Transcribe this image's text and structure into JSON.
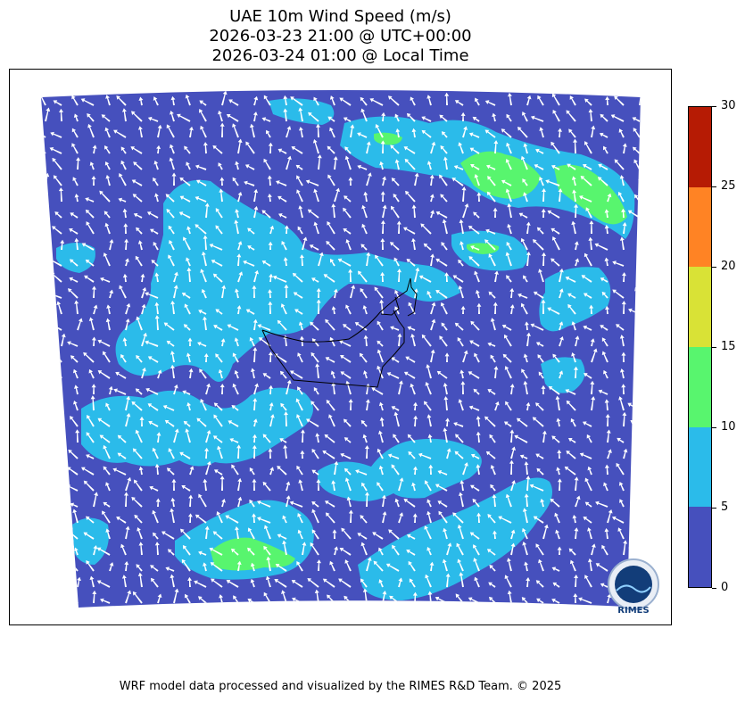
{
  "title": {
    "line1": "UAE 10m Wind Speed (m/s)",
    "line2": "2026-03-23 21:00 @ UTC+00:00",
    "line3": "2026-03-24 01:00 @ Local Time"
  },
  "colorbar": {
    "levels": [
      "0",
      "5",
      "10",
      "15",
      "20",
      "25",
      "30"
    ],
    "bands": [
      {
        "range": "0-5",
        "color": "#4650bd"
      },
      {
        "range": "5-10",
        "color": "#2bbbea"
      },
      {
        "range": "10-15",
        "color": "#58f56e"
      },
      {
        "range": "15-20",
        "color": "#d9e236"
      },
      {
        "range": "20-25",
        "color": "#ff8324"
      },
      {
        "range": "25-30",
        "color": "#b61b04"
      }
    ]
  },
  "logo": {
    "text": "RIMES"
  },
  "credit": "WRF model data processed and visualized by the RIMES R&D Team. © 2025",
  "colors": {
    "calm": "#4650bd",
    "moderate": "#2bbbea",
    "strong": "#58f56e",
    "arrow": "#ffffff",
    "border": "#000000"
  }
}
